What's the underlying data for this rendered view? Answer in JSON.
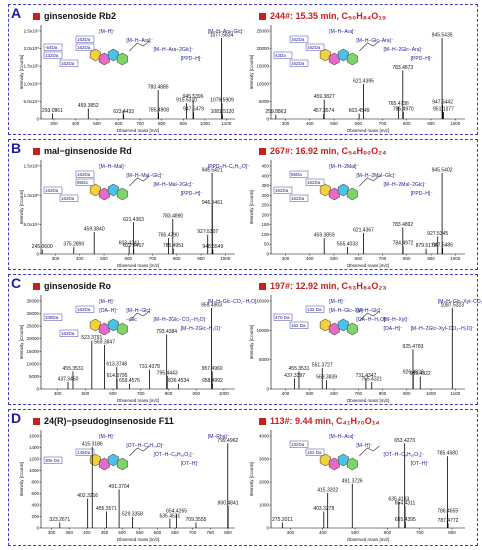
{
  "colors": {
    "accent_red": "#c81e1e",
    "panel_border": "#3b3bd0",
    "label_blue": "#1d1d9e"
  },
  "panels": [
    {
      "label": "A",
      "left_title": "ginsenoside Rb2",
      "right_title": "244#: 15.35 min, C₅₀H₈₄O₁₉",
      "left_spectrum": {
        "yticks": [
          "0",
          "5.0x10⁴",
          "1.0x10⁵",
          "1.5x10⁵",
          "2.0x10⁵",
          "2.5x10⁵"
        ],
        "xticks": [
          "300",
          "400",
          "500",
          "600",
          "700",
          "800",
          "900",
          "1000",
          "1100"
        ],
        "ylabel": "Intensity [Counts]",
        "xlabel": "Observed mass [m/z]",
        "peaks": [
          {
            "mz": 293.0861,
            "rel": 0.06,
            "label": "293.0861"
          },
          {
            "mz": 459.3852,
            "rel": 0.12,
            "label": "459.3852"
          },
          {
            "mz": 621.4435,
            "rel": 0.1,
            "label": ""
          },
          {
            "mz": 623.4433,
            "rel": 0.05,
            "label": "623.4433"
          },
          {
            "mz": 783.4885,
            "rel": 0.33,
            "label": "783.4885"
          },
          {
            "mz": 785.4908,
            "rel": 0.07,
            "label": "785.4908"
          },
          {
            "mz": 915.531,
            "rel": 0.18,
            "label": "915.5310"
          },
          {
            "mz": 945.5396,
            "rel": 0.22,
            "label": "945.5396"
          },
          {
            "mz": 947.5479,
            "rel": 0.08,
            "label": "947.5479"
          },
          {
            "mz": 1077.5834,
            "rel": 0.92,
            "label": "1077.5834"
          },
          {
            "mz": 1079.5909,
            "rel": 0.18,
            "label": "1079.5909"
          },
          {
            "mz": 1081.512,
            "rel": 0.05,
            "label": "1081.5120"
          }
        ],
        "annotations": [
          "[M−H]⁻",
          "[M−H−Ara]⁻",
          "[M−H−Ara−2Glc]⁻",
          "[PPD−H]⁻",
          "[M−H−Ara−Glc]⁻",
          "162Da",
          "132Da",
          "162Da",
          "162Da",
          "-64Da"
        ]
      },
      "right_spectrum": {
        "yticks": [
          "0",
          "5000",
          "10000",
          "15000",
          "20000",
          "25000"
        ],
        "xticks": [
          "300",
          "400",
          "500",
          "600",
          "700",
          "800",
          "900",
          "1000"
        ],
        "ylabel": "Intensity [Counts]",
        "xlabel": "Observed mass [m/z]",
        "peaks": [
          {
            "mz": 259.8863,
            "rel": 0.05,
            "label": "259.8863"
          },
          {
            "mz": 457.3574,
            "rel": 0.06,
            "label": "457.3574"
          },
          {
            "mz": 459.3827,
            "rel": 0.22,
            "label": "459.3827"
          },
          {
            "mz": 603.4549,
            "rel": 0.06,
            "label": "603.4549"
          },
          {
            "mz": 621.4395,
            "rel": 0.4,
            "label": "621.4395"
          },
          {
            "mz": 765.4736,
            "rel": 0.14,
            "label": "765.4736"
          },
          {
            "mz": 783.4873,
            "rel": 0.55,
            "label": "783.4873"
          },
          {
            "mz": 785.497,
            "rel": 0.08,
            "label": "785.4970"
          },
          {
            "mz": 945.5435,
            "rel": 0.92,
            "label": "945.5435"
          },
          {
            "mz": 947.5442,
            "rel": 0.16,
            "label": "947.5442"
          },
          {
            "mz": 951.1377,
            "rel": 0.08,
            "label": "951.1377"
          }
        ],
        "annotations": [
          "[M−H−Ara]⁻",
          "[M−H−Glc−Ara]⁻",
          "[M−H−2Glc−Ara]⁻",
          "[PPD−H]⁻",
          "162Da",
          "162Da",
          "42Da",
          "162Da"
        ]
      }
    },
    {
      "label": "B",
      "left_title": "mal−ginsenoside Rd",
      "right_title": "267#: 16.92 min, C₅₄H₉₀O₂₄",
      "left_spectrum": {
        "yticks": [
          "0",
          "5.0x10⁴",
          "1.0x10⁵",
          "1.5x10⁵"
        ],
        "xticks": [
          "300",
          "400",
          "500",
          "600",
          "700",
          "800",
          "900",
          "1000"
        ],
        "ylabel": "Intensity [Counts]",
        "xlabel": "Observed mass [m/z]",
        "peaks": [
          {
            "mz": 245.06,
            "rel": 0.05,
            "label": "245.0600"
          },
          {
            "mz": 375.289,
            "rel": 0.08,
            "label": "375.2890"
          },
          {
            "mz": 459.384,
            "rel": 0.25,
            "label": "459.3840"
          },
          {
            "mz": 603.4241,
            "rel": 0.09,
            "label": "603.4241"
          },
          {
            "mz": 621.4363,
            "rel": 0.36,
            "label": "621.4363"
          },
          {
            "mz": 622.4407,
            "rel": 0.06,
            "label": "622.4407"
          },
          {
            "mz": 765.479,
            "rel": 0.18,
            "label": "765.4790"
          },
          {
            "mz": 783.489,
            "rel": 0.4,
            "label": "783.4890"
          },
          {
            "mz": 785.4951,
            "rel": 0.06,
            "label": "785.4951"
          },
          {
            "mz": 927.5307,
            "rel": 0.22,
            "label": "927.5307"
          },
          {
            "mz": 945.5421,
            "rel": 0.92,
            "label": "945.5421"
          },
          {
            "mz": 946.5461,
            "rel": 0.55,
            "label": "946.5461"
          },
          {
            "mz": 948.5549,
            "rel": 0.05,
            "label": "948.5549"
          }
        ],
        "annotations": [
          "[M−H−Mal]⁻",
          "[M−H−Mal−Glc]⁻",
          "[M−H−Mal−2Glc]⁻",
          "[PPD−H]⁻",
          "[PPD−H−C₆H₁₂O]⁻",
          "86Da",
          "162Da",
          "162Da",
          "162Da"
        ]
      },
      "right_spectrum": {
        "yticks": [
          "0",
          "50",
          "100",
          "150",
          "200",
          "250",
          "300",
          "350",
          "400",
          "450"
        ],
        "xticks": [
          "300",
          "400",
          "500",
          "600",
          "700",
          "800",
          "900",
          "1000"
        ],
        "ylabel": "Intensity [Counts]",
        "xlabel": "Observed mass [m/z]",
        "peaks": [
          {
            "mz": 459.3859,
            "rel": 0.18,
            "label": "459.3859"
          },
          {
            "mz": 555.4033,
            "rel": 0.08,
            "label": "555.4033"
          },
          {
            "mz": 621.4367,
            "rel": 0.24,
            "label": "621.4367"
          },
          {
            "mz": 783.4892,
            "rel": 0.3,
            "label": "783.4892"
          },
          {
            "mz": 784.4972,
            "rel": 0.09,
            "label": "784.4972"
          },
          {
            "mz": 879.5172,
            "rel": 0.06,
            "label": "879.5172"
          },
          {
            "mz": 927.5345,
            "rel": 0.2,
            "label": "927.5345"
          },
          {
            "mz": 945.5402,
            "rel": 0.92,
            "label": "945.5402"
          },
          {
            "mz": 947.5486,
            "rel": 0.07,
            "label": "947.5486"
          }
        ],
        "annotations": [
          "[M−H−2Mal]⁻",
          "[M−H−2Mal−Glc]⁻",
          "[M−H−2Mal−2Glc]⁻",
          "[PPD−H]⁻",
          "86Da",
          "162Da",
          "162Da",
          "162Da"
        ]
      }
    },
    {
      "label": "C",
      "left_title": "ginsenoside Ro",
      "right_title": "197#: 12.92 min, C₅₃H₈₄O₂₃",
      "left_spectrum": {
        "yticks": [
          "0",
          "5000",
          "10000",
          "15000",
          "20000",
          "25000",
          "30000",
          "35000"
        ],
        "xticks": [
          "400",
          "500",
          "600",
          "700",
          "800",
          "900",
          "1000"
        ],
        "ylabel": "Intensity [Counts]",
        "xlabel": "Observed mass [m/z]",
        "peaks": [
          {
            "mz": 437.345,
            "rel": 0.08,
            "label": "437.3450"
          },
          {
            "mz": 455.3531,
            "rel": 0.2,
            "label": "455.3531"
          },
          {
            "mz": 523.3791,
            "rel": 0.55,
            "label": "523.3791"
          },
          {
            "mz": 569.3847,
            "rel": 0.5,
            "label": "569.3847"
          },
          {
            "mz": 613.3748,
            "rel": 0.25,
            "label": "613.3748"
          },
          {
            "mz": 614.3795,
            "rel": 0.12,
            "label": "614.3795"
          },
          {
            "mz": 659.4576,
            "rel": 0.06,
            "label": "659.4576"
          },
          {
            "mz": 731.4378,
            "rel": 0.22,
            "label": "731.4378"
          },
          {
            "mz": 793.4384,
            "rel": 0.62,
            "label": "793.4384"
          },
          {
            "mz": 795.4443,
            "rel": 0.15,
            "label": "795.4443"
          },
          {
            "mz": 836.4534,
            "rel": 0.06,
            "label": "836.4534"
          },
          {
            "mz": 955.4903,
            "rel": 0.92,
            "label": "955.4903"
          },
          {
            "mz": 957.496,
            "rel": 0.2,
            "label": "957.4960"
          },
          {
            "mz": 958.4992,
            "rel": 0.06,
            "label": "958.4992"
          }
        ],
        "annotations": [
          "[M−H]⁻",
          "[M−H−Glc]⁻",
          "[M−H−2Glc−CO₂−H₂O]⁻",
          "[M−H−2Glc−H₂O]⁻",
          "[M−H−Glc−CO₂−H₂O]⁻",
          "[OA−H]⁻",
          "−Glc",
          "162Da",
          "162Da",
          "338Da"
        ]
      },
      "right_spectrum": {
        "yticks": [
          "0",
          "5000",
          "10000",
          "15000"
        ],
        "xticks": [
          "400",
          "500",
          "600",
          "700",
          "800",
          "900",
          "1000",
          "1100"
        ],
        "ylabel": "Intensity [Counts]",
        "xlabel": "Observed mass [m/z]",
        "peaks": [
          {
            "mz": 437.3397,
            "rel": 0.12,
            "label": "437.3397"
          },
          {
            "mz": 455.3531,
            "rel": 0.2,
            "label": "455.3531"
          },
          {
            "mz": 551.3727,
            "rel": 0.24,
            "label": "551.3727"
          },
          {
            "mz": 569.3839,
            "rel": 0.1,
            "label": "569.3839"
          },
          {
            "mz": 731.4347,
            "rel": 0.12,
            "label": "731.4347"
          },
          {
            "mz": 755.4321,
            "rel": 0.08,
            "label": "755.4321"
          },
          {
            "mz": 925.4783,
            "rel": 0.45,
            "label": "925.4783"
          },
          {
            "mz": 926.4823,
            "rel": 0.16,
            "label": "926.4823"
          },
          {
            "mz": 955.4922,
            "rel": 0.14,
            "label": "955.4922"
          },
          {
            "mz": 1087.5323,
            "rel": 0.92,
            "label": "1087.5323"
          }
        ],
        "annotations": [
          "[M−H]⁻",
          "[M−H−Glc]⁻",
          "[M−H−Xyl]⁻",
          "[M−H−2Glc−Xyl−CO₂−H₂O]⁻",
          "[M−H−Glc−Xyl−CO₂−H₂O]⁻",
          "[M−H−Glc−Xyl]⁻",
          "[OA−H−H₂O]⁻",
          "[OA−H]⁻",
          "132 Da",
          "470 Da",
          "162 Da"
        ]
      }
    },
    {
      "label": "D",
      "left_title": "24(R)−pseudoginsenoside F11",
      "right_title": "113#: 9.44 min, C₄₁H₇₀O₁₄",
      "left_spectrum": {
        "yticks": [
          "0",
          "200",
          "400",
          "600",
          "800",
          "1000",
          "1200",
          "1400",
          "1600"
        ],
        "xticks": [
          "300",
          "350",
          "400",
          "450",
          "500",
          "550",
          "600",
          "650",
          "700",
          "750",
          "800"
        ],
        "ylabel": "Intensity [Counts]",
        "xlabel": "Observed mass [m/z]",
        "peaks": [
          {
            "mz": 323.2671,
            "rel": 0.06,
            "label": "323.2671"
          },
          {
            "mz": 402.3216,
            "rel": 0.32,
            "label": "402.3216"
          },
          {
            "mz": 415.3186,
            "rel": 0.88,
            "label": "415.3186"
          },
          {
            "mz": 455.3571,
            "rel": 0.18,
            "label": "455.3571"
          },
          {
            "mz": 491.3704,
            "rel": 0.42,
            "label": "491.3704"
          },
          {
            "mz": 529.3358,
            "rel": 0.12,
            "label": "529.3358"
          },
          {
            "mz": 635.4531,
            "rel": 0.1,
            "label": "635.4531"
          },
          {
            "mz": 654.4265,
            "rel": 0.15,
            "label": "654.4265"
          },
          {
            "mz": 709.3555,
            "rel": 0.06,
            "label": "709.3555"
          },
          {
            "mz": 799.4962,
            "rel": 0.92,
            "label": "799.4962"
          },
          {
            "mz": 800.4841,
            "rel": 0.24,
            "label": "800.4841"
          }
        ],
        "annotations": [
          "[M−H]⁻",
          "[OT−H−C₇H₁₄O]⁻",
          "[OT−H−C₈H₁₆O₂]⁻",
          "[OT−H]⁻",
          "[M−Rha]⁻",
          "146Da",
          "306 Da"
        ]
      },
      "right_spectrum": {
        "yticks": [
          "0",
          "1000",
          "2000",
          "3000",
          "4000"
        ],
        "xticks": [
          "300",
          "400",
          "500",
          "600",
          "700",
          "800"
        ],
        "ylabel": "Intensity [Counts]",
        "xlabel": "Observed mass [m/z]",
        "peaks": [
          {
            "mz": 275.2011,
            "rel": 0.06,
            "label": "275.2011"
          },
          {
            "mz": 403.3278,
            "rel": 0.18,
            "label": "403.3278"
          },
          {
            "mz": 415.3202,
            "rel": 0.38,
            "label": "415.3202"
          },
          {
            "mz": 491.3726,
            "rel": 0.48,
            "label": "491.3726"
          },
          {
            "mz": 635.4133,
            "rel": 0.28,
            "label": "635.4133"
          },
          {
            "mz": 653.4273,
            "rel": 0.92,
            "label": "653.4273"
          },
          {
            "mz": 654.4311,
            "rel": 0.24,
            "label": "654.4311"
          },
          {
            "mz": 655.4395,
            "rel": 0.06,
            "label": "655.4395"
          },
          {
            "mz": 785.468,
            "rel": 0.78,
            "label": "785.4680"
          },
          {
            "mz": 786.4655,
            "rel": 0.15,
            "label": "786.4655"
          },
          {
            "mz": 787.4772,
            "rel": 0.05,
            "label": "787.4772"
          }
        ],
        "annotations": [
          "[M−H−Ara]⁻",
          "[M−H]⁻",
          "[OT−H−C₈H₁₆O₂]⁻",
          "[OT−H]⁻",
          "132Da",
          "162 Da"
        ]
      }
    }
  ]
}
